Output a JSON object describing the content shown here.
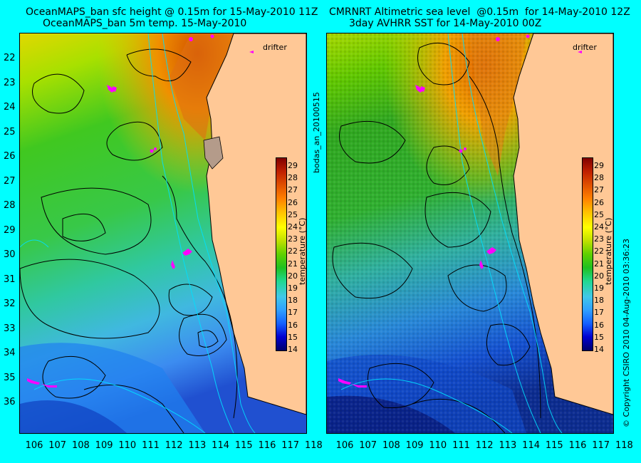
{
  "left": {
    "title1": "OceanMAPS_ban sfc height @ 0.15m for 15-May-2010 11Z",
    "title2": "OceanMAPS_ban 5m temp. 15-May-2010",
    "drifter": "drifter"
  },
  "right": {
    "title1": "CMRNRT Altimetric sea level  @0.15m  for 14-May-2010 12Z",
    "title2": "3day AVHRR SST for 14-May-2010 00Z",
    "drifter": "drifter"
  },
  "center_vertical": "bodas_an_20100515",
  "right_vertical": "© Copyright CSIRO 2010     04-Aug-2010 03:36:23",
  "colorbar": {
    "label": "temperature (°C)",
    "ticks": [
      "29",
      "28",
      "27",
      "26",
      "25",
      "24",
      "23",
      "22",
      "21",
      "20",
      "19",
      "18",
      "17",
      "16",
      "15",
      "14"
    ]
  },
  "lat_labels": [
    "22",
    "23",
    "24",
    "25",
    "26",
    "27",
    "28",
    "29",
    "30",
    "31",
    "32",
    "33",
    "34",
    "35",
    "36"
  ],
  "lon_labels": [
    "106",
    "107",
    "108",
    "109",
    "110",
    "111",
    "112",
    "113",
    "114",
    "115",
    "116",
    "117",
    "118"
  ],
  "colors": {
    "background": "#00ffff",
    "land": "#ffc896",
    "drifter": "#ff00ff"
  }
}
